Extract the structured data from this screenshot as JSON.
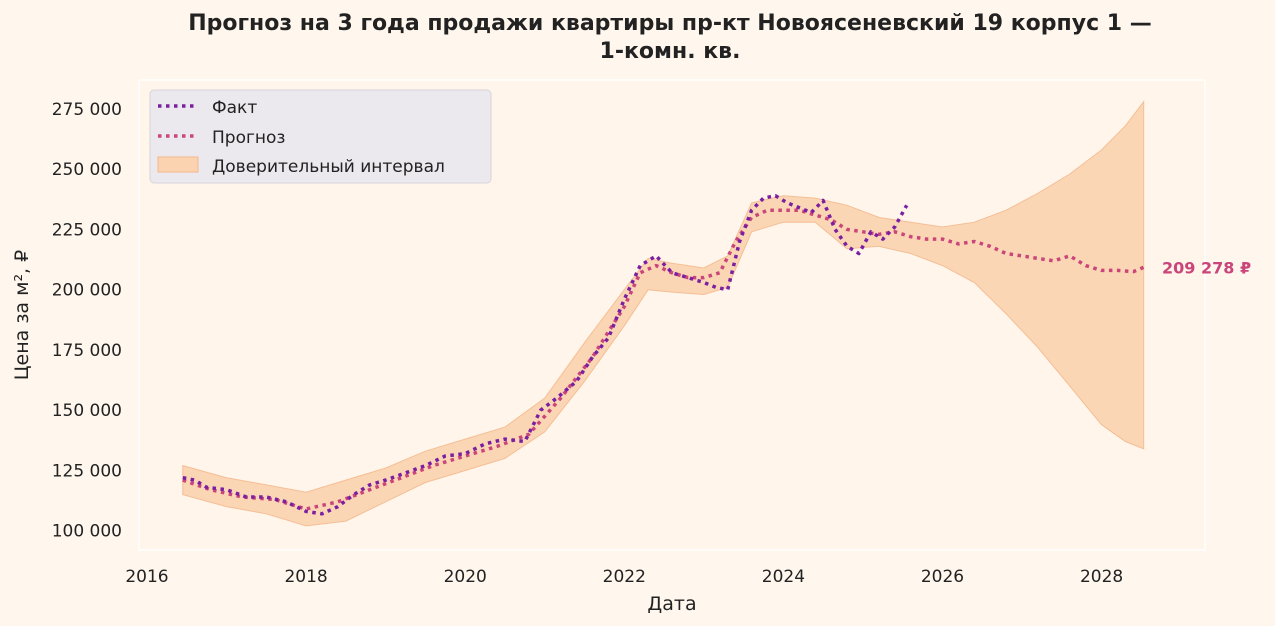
{
  "chart_data": {
    "type": "line",
    "title_line1": "Прогноз на 3 года продажи квартиры  пр-кт Новоясеневский 19 корпус 1 —",
    "title_line2": "1-комн. кв.",
    "xlabel": "Дата",
    "ylabel": "Цена за м², ₽",
    "xlim": [
      2015.9,
      2029.3
    ],
    "ylim": [
      92000,
      287000
    ],
    "x_ticks": [
      2016,
      2018,
      2020,
      2022,
      2024,
      2026,
      2028
    ],
    "y_ticks": [
      100000,
      125000,
      150000,
      175000,
      200000,
      225000,
      250000,
      275000
    ],
    "y_tick_labels": [
      "100 000",
      "125 000",
      "150 000",
      "175 000",
      "200 000",
      "225 000",
      "250 000",
      "275 000"
    ],
    "legend_position": "top-left",
    "grid": false,
    "colors": {
      "fact": "#7a1fa2",
      "forecast": "#c9457a",
      "band": "#fbd3b0",
      "band_edge": "#f4b98c",
      "background": "#fff7ee"
    },
    "series": [
      {
        "name": "Факт",
        "x": [
          2016.45,
          2016.6,
          2016.75,
          2017.0,
          2017.25,
          2017.5,
          2017.75,
          2018.0,
          2018.2,
          2018.4,
          2018.6,
          2018.8,
          2019.0,
          2019.25,
          2019.5,
          2019.75,
          2020.0,
          2020.25,
          2020.5,
          2020.75,
          2020.95,
          2021.15,
          2021.4,
          2021.6,
          2021.8,
          2022.0,
          2022.2,
          2022.4,
          2022.6,
          2022.8,
          2023.0,
          2023.15,
          2023.3,
          2023.45,
          2023.6,
          2023.75,
          2023.9,
          2024.05,
          2024.2,
          2024.35,
          2024.5,
          2024.65,
          2024.8,
          2024.95,
          2025.1,
          2025.25,
          2025.4,
          2025.55
        ],
        "values": [
          122000,
          121000,
          118000,
          117000,
          114000,
          114000,
          112000,
          108000,
          107000,
          110000,
          115000,
          119000,
          121000,
          124000,
          127000,
          131000,
          132000,
          136000,
          138000,
          137000,
          150000,
          155000,
          162000,
          172000,
          180000,
          196000,
          210000,
          214000,
          207000,
          205000,
          203000,
          201000,
          200000,
          220000,
          233000,
          238000,
          239000,
          236000,
          234000,
          232000,
          237000,
          225000,
          218000,
          215000,
          224000,
          221000,
          226000,
          235000
        ]
      },
      {
        "name": "Прогноз",
        "x": [
          2016.45,
          2016.8,
          2017.2,
          2017.6,
          2018.0,
          2018.4,
          2018.8,
          2019.2,
          2019.6,
          2020.0,
          2020.4,
          2020.8,
          2021.2,
          2021.6,
          2022.0,
          2022.2,
          2022.4,
          2022.6,
          2022.8,
          2023.0,
          2023.2,
          2023.4,
          2023.6,
          2023.8,
          2024.0,
          2024.2,
          2024.4,
          2024.6,
          2024.8,
          2025.0,
          2025.2,
          2025.4,
          2025.6,
          2025.8,
          2026.0,
          2026.2,
          2026.4,
          2026.6,
          2026.8,
          2027.0,
          2027.2,
          2027.4,
          2027.6,
          2027.8,
          2028.0,
          2028.2,
          2028.4,
          2028.53
        ],
        "values": [
          121000,
          117000,
          114000,
          113000,
          109000,
          112000,
          117000,
          122000,
          127000,
          131000,
          135000,
          140000,
          155000,
          172000,
          193000,
          207000,
          210000,
          207000,
          205000,
          205000,
          207000,
          220000,
          230000,
          233000,
          233000,
          233000,
          231000,
          229000,
          225000,
          224000,
          223000,
          224000,
          222000,
          221000,
          221000,
          219000,
          220000,
          218000,
          215000,
          214000,
          213000,
          212000,
          214000,
          210000,
          208000,
          208000,
          207500,
          209278
        ]
      }
    ],
    "band": {
      "name": "Доверительный интервал",
      "x": [
        2016.45,
        2017.0,
        2017.5,
        2018.0,
        2018.5,
        2019.0,
        2019.5,
        2020.0,
        2020.5,
        2021.0,
        2021.5,
        2022.0,
        2022.3,
        2022.6,
        2023.0,
        2023.3,
        2023.6,
        2024.0,
        2024.4,
        2024.8,
        2025.2,
        2025.6,
        2026.0,
        2026.4,
        2026.8,
        2027.2,
        2027.6,
        2028.0,
        2028.3,
        2028.53
      ],
      "upper": [
        127000,
        122000,
        119000,
        116000,
        121000,
        126000,
        133000,
        138000,
        143000,
        155000,
        178000,
        200000,
        213000,
        211000,
        209000,
        214000,
        236000,
        239000,
        238000,
        235000,
        230000,
        228000,
        226000,
        228000,
        233000,
        240000,
        248000,
        258000,
        268000,
        278000
      ],
      "lower": [
        115000,
        110000,
        107000,
        102000,
        104000,
        112000,
        120000,
        125000,
        130000,
        141000,
        162000,
        185000,
        200000,
        199000,
        198000,
        201000,
        224000,
        228000,
        228000,
        217000,
        218000,
        215000,
        210000,
        203000,
        190000,
        176000,
        160000,
        144000,
        137000,
        134000
      ]
    },
    "last_value_label": "209 278 ₽",
    "last_value": 209278
  }
}
